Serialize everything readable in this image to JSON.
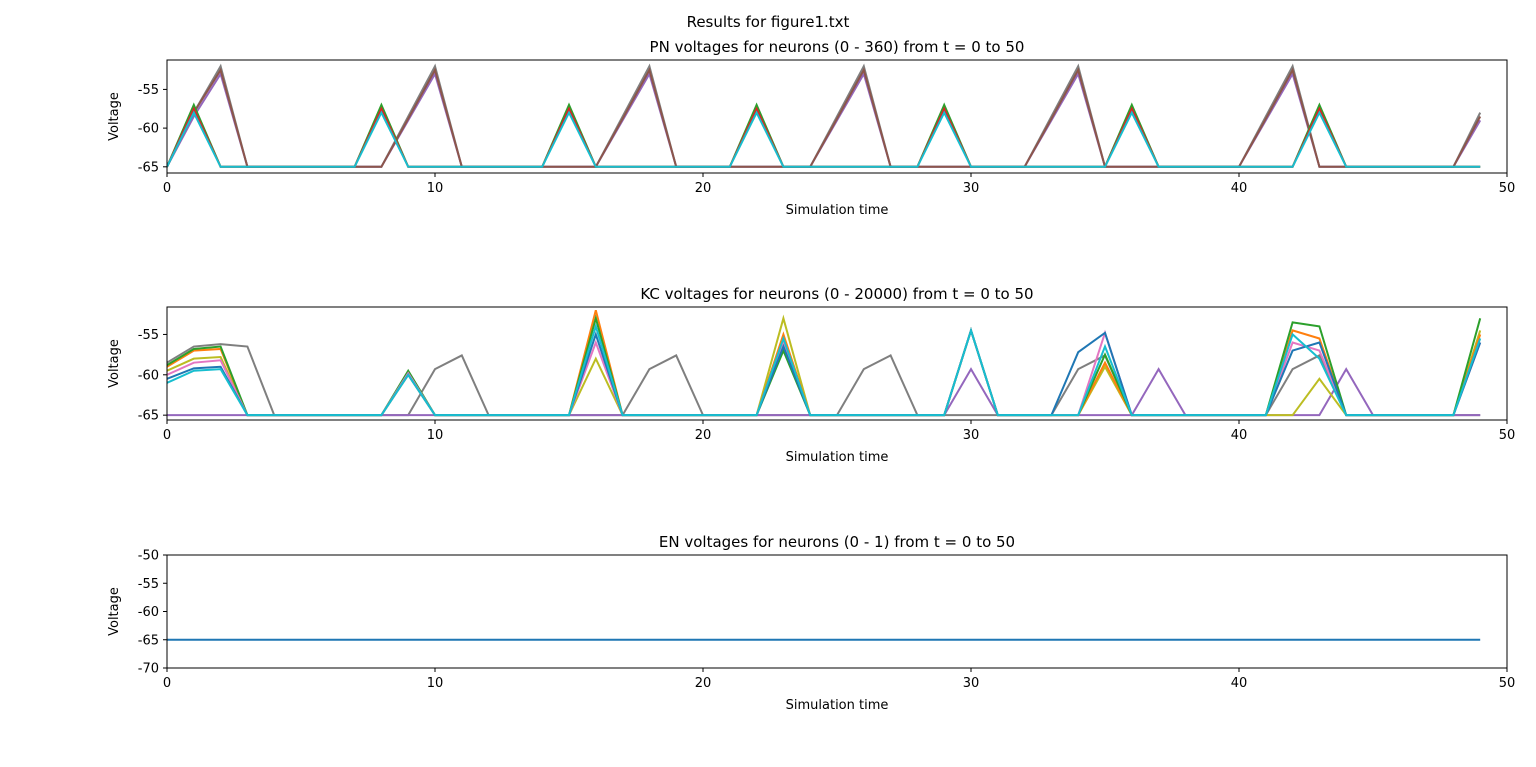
{
  "figure": {
    "title": "Results for figure1.txt"
  },
  "chart_data": [
    {
      "type": "line",
      "title": "PN voltages for neurons (0 - 360) from t = 0 to 50",
      "xlabel": "Simulation time",
      "ylabel": "Voltage",
      "xlim": [
        0,
        50
      ],
      "ylim": [
        -65.8,
        -51.2
      ],
      "xticks": [
        0,
        10,
        20,
        30,
        40,
        50
      ],
      "yticks": [
        -55,
        -60,
        -65
      ],
      "xtick_labels": [
        "0",
        "10",
        "20",
        "30",
        "40",
        "50"
      ],
      "ytick_labels": [
        "-55",
        "-60",
        "-65"
      ],
      "grid": false,
      "x": [
        0,
        1,
        2,
        3,
        4,
        5,
        6,
        7,
        8,
        9,
        10,
        11,
        12,
        13,
        14,
        15,
        16,
        17,
        18,
        19,
        20,
        21,
        22,
        23,
        24,
        25,
        26,
        27,
        28,
        29,
        30,
        31,
        32,
        33,
        34,
        35,
        36,
        37,
        38,
        39,
        40,
        41,
        42,
        43,
        44,
        45,
        46,
        47,
        48,
        49
      ],
      "series": [
        {
          "color": "#7f7f7f",
          "values": [
            -65,
            -58,
            -52,
            -65,
            -65,
            -65,
            -65,
            -65,
            -65,
            -58.5,
            -52,
            -65,
            -65,
            -65,
            -65,
            -65,
            -65,
            -58.5,
            -52,
            -65,
            -65,
            -65,
            -65,
            -65,
            -65,
            -58.5,
            -52,
            -65,
            -65,
            -65,
            -65,
            -65,
            -65,
            -58.5,
            -52,
            -65,
            -65,
            -65,
            -65,
            -65,
            -65,
            -58.5,
            -52,
            -65,
            -65,
            -65,
            -65,
            -65,
            -65,
            -58
          ]
        },
        {
          "color": "#9467bd",
          "values": [
            -65,
            -58.5,
            -53,
            -65,
            -65,
            -65,
            -65,
            -65,
            -65,
            -59,
            -53,
            -65,
            -65,
            -65,
            -65,
            -65,
            -65,
            -59,
            -53,
            -65,
            -65,
            -65,
            -65,
            -65,
            -65,
            -59,
            -53,
            -65,
            -65,
            -65,
            -65,
            -65,
            -65,
            -59,
            -53,
            -65,
            -65,
            -65,
            -65,
            -65,
            -65,
            -59,
            -53,
            -65,
            -65,
            -65,
            -65,
            -65,
            -65,
            -59
          ]
        },
        {
          "color": "#8c564b",
          "values": [
            -65,
            -58,
            -52.5,
            -65,
            -65,
            -65,
            -65,
            -65,
            -65,
            -58.8,
            -52.5,
            -65,
            -65,
            -65,
            -65,
            -65,
            -65,
            -58.8,
            -52.5,
            -65,
            -65,
            -65,
            -65,
            -65,
            -65,
            -58.8,
            -52.5,
            -65,
            -65,
            -65,
            -65,
            -65,
            -65,
            -58.8,
            -52.5,
            -65,
            -65,
            -65,
            -65,
            -65,
            -65,
            -58.8,
            -52.5,
            -65,
            -65,
            -65,
            -65,
            -65,
            -65,
            -58.5
          ]
        },
        {
          "color": "#2ca02c",
          "values": [
            -65,
            -57,
            -65,
            -65,
            -65,
            -65,
            -65,
            -65,
            -57,
            -65,
            -65,
            -65,
            -65,
            -65,
            -65,
            -57,
            -65,
            -65,
            -65,
            -65,
            -65,
            -65,
            -57,
            -65,
            -65,
            -65,
            -65,
            -65,
            -65,
            -57,
            -65,
            -65,
            -65,
            -65,
            -65,
            -65,
            -57,
            -65,
            -65,
            -65,
            -65,
            -65,
            -65,
            -57,
            -65,
            -65,
            -65,
            -65,
            -65,
            -65
          ]
        },
        {
          "color": "#d62728",
          "values": [
            -65,
            -57.5,
            -65,
            -65,
            -65,
            -65,
            -65,
            -65,
            -57.5,
            -65,
            -65,
            -65,
            -65,
            -65,
            -65,
            -57.5,
            -65,
            -65,
            -65,
            -65,
            -65,
            -65,
            -57.5,
            -65,
            -65,
            -65,
            -65,
            -65,
            -65,
            -57.5,
            -65,
            -65,
            -65,
            -65,
            -65,
            -65,
            -57.5,
            -65,
            -65,
            -65,
            -65,
            -65,
            -65,
            -57.5,
            -65,
            -65,
            -65,
            -65,
            -65,
            -65
          ]
        },
        {
          "color": "#17becf",
          "values": [
            -65,
            -58,
            -65,
            -65,
            -65,
            -65,
            -65,
            -65,
            -58,
            -65,
            -65,
            -65,
            -65,
            -65,
            -65,
            -58,
            -65,
            -65,
            -65,
            -65,
            -65,
            -65,
            -58,
            -65,
            -65,
            -65,
            -65,
            -65,
            -65,
            -58,
            -65,
            -65,
            -65,
            -65,
            -65,
            -65,
            -58,
            -65,
            -65,
            -65,
            -65,
            -65,
            -65,
            -58,
            -65,
            -65,
            -65,
            -65,
            -65,
            -65
          ]
        }
      ]
    },
    {
      "type": "line",
      "title": "KC voltages for neurons (0 - 20000) from t = 0 to 50",
      "xlabel": "Simulation time",
      "ylabel": "Voltage",
      "xlim": [
        0,
        50
      ],
      "ylim": [
        -65.6,
        -51.6
      ],
      "xticks": [
        0,
        10,
        20,
        30,
        40,
        50
      ],
      "yticks": [
        -55,
        -60,
        -65
      ],
      "xtick_labels": [
        "0",
        "10",
        "20",
        "30",
        "40",
        "50"
      ],
      "ytick_labels": [
        "-55",
        "-60",
        "-65"
      ],
      "grid": false,
      "x": [
        0,
        1,
        2,
        3,
        4,
        5,
        6,
        7,
        8,
        9,
        10,
        11,
        12,
        13,
        14,
        15,
        16,
        17,
        18,
        19,
        20,
        21,
        22,
        23,
        24,
        25,
        26,
        27,
        28,
        29,
        30,
        31,
        32,
        33,
        34,
        35,
        36,
        37,
        38,
        39,
        40,
        41,
        42,
        43,
        44,
        45,
        46,
        47,
        48,
        49
      ],
      "series": [
        {
          "color": "#7f7f7f",
          "values": [
            -58.5,
            -56.5,
            -56.2,
            -56.5,
            -65,
            -65,
            -65,
            -65,
            -65,
            -65,
            -59.3,
            -57.6,
            -65,
            -65,
            -65,
            -65,
            -65,
            -65,
            -59.3,
            -57.6,
            -65,
            -65,
            -65,
            -65,
            -65,
            -65,
            -59.3,
            -57.6,
            -65,
            -65,
            -65,
            -65,
            -65,
            -65,
            -59.3,
            -57.6,
            -65,
            -65,
            -65,
            -65,
            -65,
            -65,
            -59.3,
            -57.6,
            -65,
            -65,
            -65,
            -65,
            -65,
            -65
          ]
        },
        {
          "color": "#9467bd",
          "values": [
            -65,
            -65,
            -65,
            -65,
            -65,
            -65,
            -65,
            -65,
            -65,
            -65,
            -65,
            -65,
            -65,
            -65,
            -65,
            -65,
            -65,
            -65,
            -65,
            -65,
            -65,
            -65,
            -65,
            -65,
            -65,
            -65,
            -65,
            -65,
            -65,
            -65,
            -59.3,
            -65,
            -65,
            -65,
            -65,
            -65,
            -65,
            -59.3,
            -65,
            -65,
            -65,
            -65,
            -65,
            -65,
            -59.3,
            -65,
            -65,
            -65,
            -65,
            -65
          ]
        },
        {
          "color": "#bcbd22",
          "values": [
            -59.5,
            -58,
            -57.8,
            -65,
            -65,
            -65,
            -65,
            -65,
            -65,
            -59.7,
            -65,
            -65,
            -65,
            -65,
            -65,
            -65,
            -58,
            -65,
            -65,
            -65,
            -65,
            -65,
            -65,
            -53,
            -65,
            -65,
            -65,
            -65,
            -65,
            -65,
            -54.5,
            -65,
            -65,
            -65,
            -65,
            -59,
            -65,
            -65,
            -65,
            -65,
            -65,
            -65,
            -65,
            -60.5,
            -65,
            -65,
            -65,
            -65,
            -65,
            -54.5
          ]
        },
        {
          "color": "#ff7f0e",
          "values": [
            -59,
            -57,
            -56.8,
            -65,
            -65,
            -65,
            -65,
            -65,
            -65,
            -60,
            -65,
            -65,
            -65,
            -65,
            -65,
            -65,
            -52,
            -65,
            -65,
            -65,
            -65,
            -65,
            -65,
            -55,
            -65,
            -65,
            -65,
            -65,
            -65,
            -65,
            -54.5,
            -65,
            -65,
            -65,
            -65,
            -58.5,
            -65,
            -65,
            -65,
            -65,
            -65,
            -65,
            -54.5,
            -55.5,
            -65,
            -65,
            -65,
            -65,
            -65,
            -55
          ]
        },
        {
          "color": "#2ca02c",
          "values": [
            -58.8,
            -56.8,
            -56.5,
            -65,
            -65,
            -65,
            -65,
            -65,
            -65,
            -59.5,
            -65,
            -65,
            -65,
            -65,
            -65,
            -65,
            -53,
            -65,
            -65,
            -65,
            -65,
            -65,
            -65,
            -57,
            -65,
            -65,
            -65,
            -65,
            -65,
            -65,
            -54.5,
            -65,
            -65,
            -65,
            -65,
            -57.5,
            -65,
            -65,
            -65,
            -65,
            -65,
            -65,
            -53.5,
            -54,
            -65,
            -65,
            -65,
            -65,
            -65,
            -53
          ]
        },
        {
          "color": "#e377c2",
          "values": [
            -60,
            -58.5,
            -58.2,
            -65,
            -65,
            -65,
            -65,
            -65,
            -65,
            -59.8,
            -65,
            -65,
            -65,
            -65,
            -65,
            -65,
            -56,
            -65,
            -65,
            -65,
            -65,
            -65,
            -65,
            -56,
            -65,
            -65,
            -65,
            -65,
            -65,
            -65,
            -54.5,
            -65,
            -65,
            -65,
            -65,
            -54.8,
            -65,
            -65,
            -65,
            -65,
            -65,
            -65,
            -56,
            -57,
            -65,
            -65,
            -65,
            -65,
            -65,
            -56
          ]
        },
        {
          "color": "#1f77b4",
          "values": [
            -60.5,
            -59.2,
            -59,
            -65,
            -65,
            -65,
            -65,
            -65,
            -65,
            -60,
            -65,
            -65,
            -65,
            -65,
            -65,
            -65,
            -55,
            -65,
            -65,
            -65,
            -65,
            -65,
            -65,
            -56.5,
            -65,
            -65,
            -65,
            -65,
            -65,
            -65,
            -54.5,
            -65,
            -65,
            -65,
            -57.2,
            -54.8,
            -65,
            -65,
            -65,
            -65,
            -65,
            -65,
            -57,
            -56,
            -65,
            -65,
            -65,
            -65,
            -65,
            -56
          ]
        },
        {
          "color": "#17becf",
          "values": [
            -61,
            -59.5,
            -59.3,
            -65,
            -65,
            -65,
            -65,
            -65,
            -65,
            -60,
            -65,
            -65,
            -65,
            -65,
            -65,
            -65,
            -54,
            -65,
            -65,
            -65,
            -65,
            -65,
            -65,
            -55.5,
            -65,
            -65,
            -65,
            -65,
            -65,
            -65,
            -54.5,
            -65,
            -65,
            -65,
            -65,
            -56.5,
            -65,
            -65,
            -65,
            -65,
            -65,
            -65,
            -55,
            -58,
            -65,
            -65,
            -65,
            -65,
            -65,
            -55.5
          ]
        }
      ]
    },
    {
      "type": "line",
      "title": "EN voltages for neurons (0 - 1) from t = 0 to 50",
      "xlabel": "Simulation time",
      "ylabel": "Voltage",
      "xlim": [
        0,
        50
      ],
      "ylim": [
        -70,
        -50
      ],
      "xticks": [
        0,
        10,
        20,
        30,
        40,
        50
      ],
      "yticks": [
        -50,
        -55,
        -60,
        -65,
        -70
      ],
      "xtick_labels": [
        "0",
        "10",
        "20",
        "30",
        "40",
        "50"
      ],
      "ytick_labels": [
        "-50",
        "-55",
        "-60",
        "-65",
        "-70"
      ],
      "grid": false,
      "x": [
        0,
        1,
        2,
        3,
        4,
        5,
        6,
        7,
        8,
        9,
        10,
        11,
        12,
        13,
        14,
        15,
        16,
        17,
        18,
        19,
        20,
        21,
        22,
        23,
        24,
        25,
        26,
        27,
        28,
        29,
        30,
        31,
        32,
        33,
        34,
        35,
        36,
        37,
        38,
        39,
        40,
        41,
        42,
        43,
        44,
        45,
        46,
        47,
        48,
        49
      ],
      "series": [
        {
          "color": "#1f77b4",
          "values": [
            -65,
            -65,
            -65,
            -65,
            -65,
            -65,
            -65,
            -65,
            -65,
            -65,
            -65,
            -65,
            -65,
            -65,
            -65,
            -65,
            -65,
            -65,
            -65,
            -65,
            -65,
            -65,
            -65,
            -65,
            -65,
            -65,
            -65,
            -65,
            -65,
            -65,
            -65,
            -65,
            -65,
            -65,
            -65,
            -65,
            -65,
            -65,
            -65,
            -65,
            -65,
            -65,
            -65,
            -65,
            -65,
            -65,
            -65,
            -65,
            -65,
            -65
          ]
        }
      ]
    }
  ]
}
